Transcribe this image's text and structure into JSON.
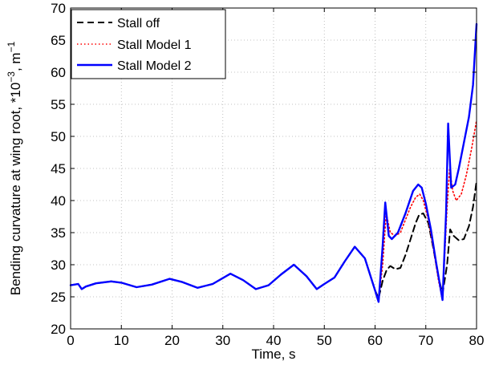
{
  "chart_data": {
    "type": "line",
    "title": "",
    "xlabel": "Time, s",
    "ylabel_main": "Bending curvature at wing root, *10",
    "ylabel_exp": "−3",
    "ylabel_unit": ", m",
    "ylabel_unit_exp": "−1",
    "xlim": [
      0,
      80
    ],
    "ylim": [
      20,
      70
    ],
    "xticks": [
      "0",
      "10",
      "20",
      "30",
      "40",
      "50",
      "60",
      "70",
      "80"
    ],
    "yticks": [
      "20",
      "25",
      "30",
      "35",
      "40",
      "45",
      "50",
      "55",
      "60",
      "65",
      "70"
    ],
    "grid": true,
    "legend_position": "top-left",
    "series": [
      {
        "name": "Stall off",
        "color": "#000000",
        "style": "dashed",
        "x": [
          0,
          1.5,
          2.2,
          3,
          5,
          8,
          10,
          13,
          16,
          19.5,
          22,
          25,
          28,
          31.5,
          34,
          36.5,
          39,
          41.5,
          44,
          46.5,
          48.5,
          50,
          52,
          54,
          56,
          58,
          60,
          60.7,
          61.5,
          62.3,
          63,
          64,
          65,
          66,
          67,
          68,
          68.7,
          69.5,
          70.5,
          71.5,
          72.5,
          73.3,
          74.2,
          74.8,
          75.5,
          76.5,
          77.5,
          78.5,
          79.3,
          80
        ],
        "y": [
          26.8,
          27,
          26.2,
          26.6,
          27.1,
          27.4,
          27.2,
          26.5,
          26.9,
          27.8,
          27.3,
          26.4,
          27.0,
          28.6,
          27.6,
          26.2,
          26.8,
          28.5,
          30.0,
          28.2,
          26.2,
          27.0,
          28.0,
          30.5,
          32.8,
          31.0,
          26.0,
          24.8,
          27.5,
          29.2,
          29.8,
          29.3,
          29.5,
          31.5,
          34.0,
          36.5,
          37.8,
          38.0,
          36.5,
          32.5,
          28.0,
          25.5,
          30.0,
          35.5,
          34.5,
          33.8,
          34.0,
          36.0,
          39.0,
          43.0
        ]
      },
      {
        "name": "Stall Model 1",
        "color": "#ff0000",
        "style": "dotted",
        "x": [
          0,
          1.5,
          2.2,
          3,
          5,
          8,
          10,
          13,
          16,
          19.5,
          22,
          25,
          28,
          31.5,
          34,
          36.5,
          39,
          41.5,
          44,
          46.5,
          48.5,
          50,
          52,
          54,
          56,
          58,
          60,
          60.7,
          61.5,
          62.2,
          63,
          64,
          65,
          66,
          67,
          68,
          68.8,
          69.5,
          70.5,
          71.5,
          72.5,
          73.3,
          74.2,
          74.7,
          75.3,
          76,
          77,
          78,
          79,
          80
        ],
        "y": [
          26.8,
          27,
          26.2,
          26.6,
          27.1,
          27.4,
          27.2,
          26.5,
          26.9,
          27.8,
          27.3,
          26.4,
          27.0,
          28.6,
          27.6,
          26.2,
          26.8,
          28.5,
          30.0,
          28.2,
          26.2,
          27.0,
          28.0,
          30.5,
          32.8,
          31.0,
          26.0,
          24.5,
          30.0,
          38.0,
          35.0,
          34.5,
          35.0,
          37.0,
          39.0,
          40.5,
          41.0,
          40.0,
          37.0,
          32.5,
          27.5,
          24.5,
          39.0,
          45.0,
          41.5,
          40.0,
          41.0,
          44.0,
          48.0,
          52.5
        ]
      },
      {
        "name": "Stall Model 2",
        "color": "#0000ff",
        "style": "solid",
        "x": [
          0,
          1.5,
          2.2,
          3,
          5,
          8,
          10,
          13,
          16,
          19.5,
          22,
          25,
          28,
          31.5,
          34,
          36.5,
          39,
          41.5,
          44,
          46.5,
          48.5,
          50,
          52,
          54,
          56,
          58,
          60,
          60.7,
          61.5,
          62,
          62.7,
          63.3,
          64.5,
          66,
          67.5,
          68.5,
          69.2,
          70,
          71,
          72,
          73.3,
          74,
          74.4,
          75,
          75.8,
          76.5,
          77.5,
          78.5,
          79.3,
          80
        ],
        "y": [
          26.8,
          27,
          26.2,
          26.6,
          27.1,
          27.4,
          27.2,
          26.5,
          26.9,
          27.8,
          27.3,
          26.4,
          27.0,
          28.6,
          27.6,
          26.2,
          26.8,
          28.5,
          30.0,
          28.2,
          26.2,
          27.0,
          28.0,
          30.5,
          32.8,
          31.0,
          26.0,
          24.2,
          33.0,
          39.7,
          34.5,
          34.0,
          35.0,
          38.0,
          41.5,
          42.5,
          42.0,
          39.5,
          35.5,
          30.5,
          24.5,
          38.0,
          52.0,
          42.0,
          42.5,
          45.0,
          49.0,
          53.0,
          58.0,
          67.5
        ]
      }
    ]
  }
}
